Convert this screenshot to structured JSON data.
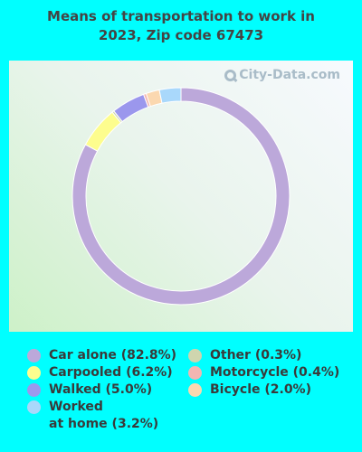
{
  "title_lines": [
    "Means of transportation to work in",
    "2023, Zip code 67473"
  ],
  "watermark": "City-Data.com",
  "chart_data": {
    "type": "pie",
    "donut": true,
    "title": "Means of transportation to work in 2023, Zip code 67473",
    "legend_position": "bottom",
    "slices": [
      {
        "label": "Car alone",
        "value": 82.8,
        "legend": "Car alone (82.8%)",
        "color": "#bca8da"
      },
      {
        "label": "Carpooled",
        "value": 6.2,
        "legend": "Carpooled (6.2%)",
        "color": "#fdfd8e"
      },
      {
        "label": "Other",
        "value": 0.3,
        "legend": "Other (0.3%)",
        "color": "#cfd5ae"
      },
      {
        "label": "Walked",
        "value": 5.0,
        "legend": "Walked (5.0%)",
        "color": "#9b97ed"
      },
      {
        "label": "Motorcycle",
        "value": 0.4,
        "legend": "Motorcycle (0.4%)",
        "color": "#f2b6b2"
      },
      {
        "label": "Bicycle",
        "value": 2.0,
        "legend": "Bicycle (2.0%)",
        "color": "#fbd8b0"
      },
      {
        "label": "Worked at home",
        "value": 3.2,
        "legend": "Worked\nat home (3.2%)",
        "color": "#a9d8fb"
      }
    ]
  },
  "legend": {
    "columns": [
      [
        "Car alone",
        "Carpooled",
        "Walked",
        "Worked at home"
      ],
      [
        "Other",
        "Motorcycle",
        "Bicycle"
      ]
    ]
  }
}
